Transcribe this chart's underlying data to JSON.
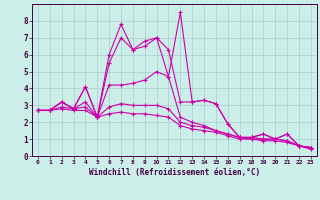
{
  "xlabel": "Windchill (Refroidissement éolien,°C)",
  "bg_color": "#cceee8",
  "line_color": "#cc00aa",
  "grid_color": "#aacccc",
  "xlim": [
    -0.5,
    23.5
  ],
  "ylim": [
    0,
    9
  ],
  "xticks": [
    0,
    1,
    2,
    3,
    4,
    5,
    6,
    7,
    8,
    9,
    10,
    11,
    12,
    13,
    14,
    15,
    16,
    17,
    18,
    19,
    20,
    21,
    22,
    23
  ],
  "yticks": [
    0,
    1,
    2,
    3,
    4,
    5,
    6,
    7,
    8
  ],
  "series": [
    [
      2.7,
      2.7,
      3.2,
      2.8,
      4.1,
      2.3,
      6.0,
      7.8,
      6.3,
      6.8,
      7.0,
      4.7,
      8.5,
      3.2,
      3.3,
      3.1,
      1.9,
      1.1,
      1.1,
      1.3,
      1.0,
      1.3,
      0.6,
      0.5
    ],
    [
      2.7,
      2.7,
      3.2,
      2.8,
      4.1,
      2.3,
      5.5,
      7.0,
      6.3,
      6.5,
      7.0,
      6.3,
      3.2,
      3.2,
      3.3,
      3.1,
      1.9,
      1.1,
      1.1,
      1.3,
      1.0,
      1.3,
      0.6,
      0.5
    ],
    [
      2.7,
      2.7,
      3.2,
      2.8,
      3.2,
      2.3,
      4.2,
      4.2,
      4.3,
      4.5,
      5.0,
      4.7,
      2.3,
      2.0,
      1.8,
      1.5,
      1.3,
      1.1,
      1.1,
      1.0,
      1.0,
      0.9,
      0.6,
      0.5
    ],
    [
      2.7,
      2.7,
      2.9,
      2.8,
      2.9,
      2.3,
      2.9,
      3.1,
      3.0,
      3.0,
      3.0,
      2.8,
      2.0,
      1.8,
      1.7,
      1.5,
      1.3,
      1.1,
      1.0,
      1.0,
      1.0,
      0.9,
      0.6,
      0.5
    ],
    [
      2.7,
      2.7,
      2.8,
      2.7,
      2.7,
      2.3,
      2.5,
      2.6,
      2.5,
      2.5,
      2.4,
      2.3,
      1.8,
      1.6,
      1.5,
      1.4,
      1.2,
      1.0,
      1.0,
      0.9,
      0.9,
      0.8,
      0.6,
      0.4
    ]
  ]
}
